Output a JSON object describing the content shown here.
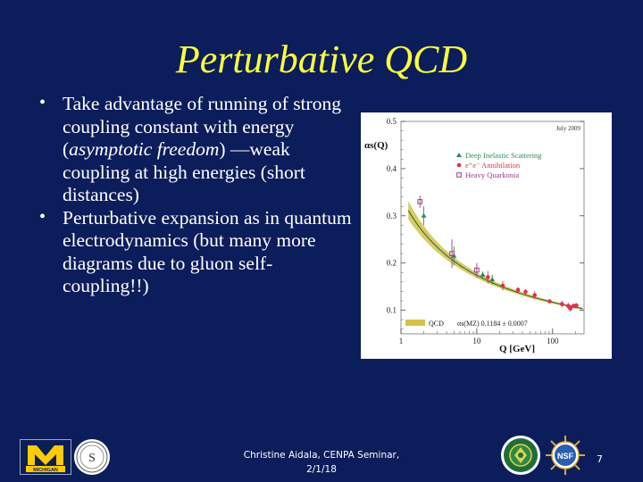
{
  "slide": {
    "title": "Perturbative QCD",
    "bullets": [
      {
        "parts": [
          {
            "text": "Take advantage of running of strong coupling constant with energy (",
            "italic": false
          },
          {
            "text": "asymptotic freedom",
            "italic": true
          },
          {
            "text": ") —weak coupling at high energies (short distances)",
            "italic": false
          }
        ]
      },
      {
        "parts": [
          {
            "text": "Perturbative expansion as in quantum electrodynamics (but many more diagrams due to gluon self-coupling!!)",
            "italic": false
          }
        ]
      }
    ],
    "bullet_glyph": "•",
    "footer": {
      "line1": "Christine Aidala, CENPA Seminar,",
      "line2": "2/1/18"
    },
    "page_number": "7",
    "logos": {
      "umich_text": "MICHIGAN",
      "seal_letter": "S",
      "nsf_text": "NSF"
    },
    "colors": {
      "background": "#0c1d5c",
      "title": "#ffff3c",
      "text": "#ffffff"
    }
  },
  "chart_data": {
    "type": "scatter",
    "title": "",
    "corner_note": "July 2009",
    "xlabel": "Q [GeV]",
    "ylabel": "αs(Q)",
    "x_scale": "log",
    "xlim": [
      1,
      260
    ],
    "ylim": [
      0.05,
      0.5
    ],
    "x_tick_labels": [
      "1",
      "10",
      "100"
    ],
    "x_ticks": [
      1,
      10,
      100
    ],
    "y_tick_labels": [
      "0.1",
      "0.2",
      "0.3",
      "0.4",
      "0.5"
    ],
    "y_ticks": [
      0.1,
      0.2,
      0.3,
      0.4,
      0.5
    ],
    "band": {
      "label": "QCD",
      "fit_label": "αs(MZ)   0.1184 ± 0.0007",
      "alpha_mz": 0.1184,
      "uncertainty": 0.0007,
      "color": "#cfc34a"
    },
    "series": [
      {
        "name": "Deep Inelastic Scattering",
        "marker": "triangle",
        "color": "#2e8b57",
        "points": [
          {
            "x": 2.0,
            "y": 0.3,
            "err": 0.02
          },
          {
            "x": 5.0,
            "y": 0.215,
            "err": 0.02
          },
          {
            "x": 12,
            "y": 0.175,
            "err": 0.007
          },
          {
            "x": 16,
            "y": 0.165,
            "err": 0.01
          }
        ]
      },
      {
        "name": "e⁺e⁻ Annihilation",
        "marker": "circle",
        "color": "#e0304a",
        "points": [
          {
            "x": 14,
            "y": 0.17,
            "err": 0.013
          },
          {
            "x": 22,
            "y": 0.152,
            "err": 0.01
          },
          {
            "x": 35,
            "y": 0.143,
            "err": 0.006
          },
          {
            "x": 44,
            "y": 0.139,
            "err": 0.006
          },
          {
            "x": 58,
            "y": 0.132,
            "err": 0.008
          },
          {
            "x": 91.2,
            "y": 0.1189,
            "err": 0.0026
          },
          {
            "x": 133,
            "y": 0.113,
            "err": 0.007
          },
          {
            "x": 161,
            "y": 0.109,
            "err": 0.007
          },
          {
            "x": 172,
            "y": 0.104,
            "err": 0.007
          },
          {
            "x": 189,
            "y": 0.109,
            "err": 0.005
          },
          {
            "x": 200,
            "y": 0.109,
            "err": 0.005
          },
          {
            "x": 206,
            "y": 0.11,
            "err": 0.005
          }
        ]
      },
      {
        "name": "Heavy Quarkonia",
        "marker": "square",
        "color": "#9a3a8a",
        "points": [
          {
            "x": 1.78,
            "y": 0.33,
            "err": 0.013
          },
          {
            "x": 4.7,
            "y": 0.22,
            "err": 0.03
          },
          {
            "x": 10,
            "y": 0.185,
            "err": 0.015
          }
        ]
      }
    ],
    "legend_position": "top-right"
  }
}
